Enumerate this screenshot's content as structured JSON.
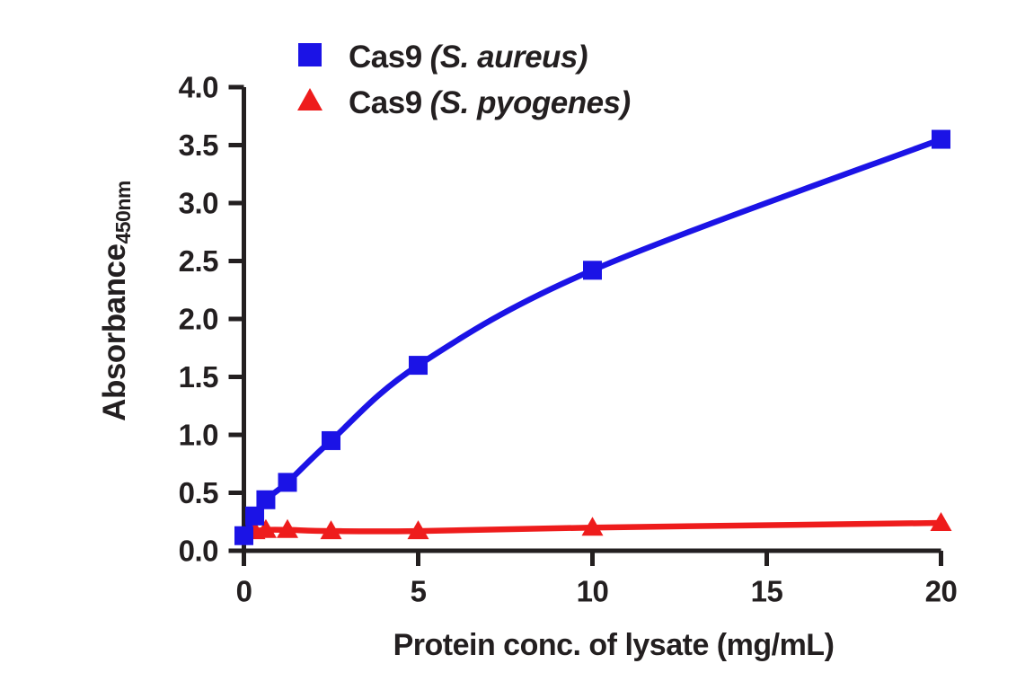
{
  "figure": {
    "background": "#ffffff",
    "axis_color": "#231f20"
  },
  "chart_data": {
    "type": "line",
    "title": "",
    "xlabel": "Protein conc. of lysate (mg/mL)",
    "ylabel_main": "Absorbance",
    "ylabel_sub": "450nm",
    "xlim": [
      0,
      20
    ],
    "ylim": [
      0.0,
      4.0
    ],
    "x_ticks": [
      0,
      5,
      10,
      15,
      20
    ],
    "y_ticks": [
      0.0,
      0.5,
      1.0,
      1.5,
      2.0,
      2.5,
      3.0,
      3.5,
      4.0
    ],
    "grid": false,
    "legend_position": "top-left-inside",
    "series": [
      {
        "name": "Cas9 (S. aureus)",
        "label_main": "Cas9",
        "label_species": "(S. aureus)",
        "marker": "square",
        "color": "#1b13e6",
        "x": [
          0,
          0.31,
          0.63,
          1.25,
          2.5,
          5,
          10,
          20
        ],
        "y": [
          0.13,
          0.3,
          0.44,
          0.59,
          0.95,
          1.6,
          2.42,
          3.55
        ]
      },
      {
        "name": "Cas9 (S. pyogenes)",
        "label_main": "Cas9",
        "label_species": "(S. pyogenes)",
        "marker": "triangle",
        "color": "#ee1c1c",
        "x": [
          0.31,
          0.63,
          1.25,
          2.5,
          5,
          10,
          20
        ],
        "y": [
          0.17,
          0.18,
          0.18,
          0.17,
          0.17,
          0.2,
          0.24
        ]
      }
    ]
  }
}
